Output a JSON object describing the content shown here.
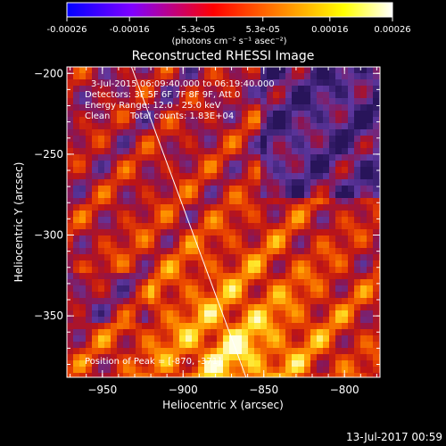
{
  "colorbar": {
    "tick_labels": [
      "-0.00026",
      "-0.00016",
      "-5.3e-05",
      "5.3e-05",
      "0.00016",
      "0.00026"
    ],
    "tick_values": [
      -0.00026,
      -0.00016,
      -5.3e-05,
      5.3e-05,
      0.00016,
      0.00026
    ],
    "range": [
      -0.00026,
      0.00026
    ],
    "units": "(photons cm⁻² s⁻¹ asec⁻²)",
    "colors": [
      "#0000ff",
      "#8000ff",
      "#ff0000",
      "#ff8000",
      "#ffff00",
      "#ffffff"
    ]
  },
  "chart_data": {
    "type": "heatmap",
    "title": "Reconstructed RHESSI Image",
    "xlabel": "Heliocentric X (arcsec)",
    "ylabel": "Heliocentric Y (arcsec)",
    "xlim": [
      -972,
      -778
    ],
    "ylim": [
      -388,
      -196
    ],
    "x_ticks": [
      -950,
      -900,
      -850,
      -800
    ],
    "y_ticks": [
      -200,
      -250,
      -300,
      -350
    ],
    "x_tick_labels": [
      "−950",
      "−900",
      "−850",
      "−800"
    ],
    "y_tick_labels": [
      "−200",
      "−250",
      "−300",
      "−350"
    ],
    "limb_line": [
      [
        -932,
        -196
      ],
      [
        -861,
        -388
      ]
    ],
    "peak_marker": [
      -870,
      -371
    ],
    "annotations": {
      "time_range": "3-Jul-2015 06:09:40.000 to 06:19:40.000",
      "detectors": "Detectors: 3F 5F 6F 7F 8F 9F, Att 0",
      "energy_range": "Energy Range: 12.0 - 25.0 keV",
      "clean": "Clean",
      "total_counts": "Total counts: 1.83E+04",
      "peak_position": "Position of Peak = [-870, -371]"
    }
  },
  "footer": {
    "timestamp": "13-Jul-2017 00:59"
  }
}
